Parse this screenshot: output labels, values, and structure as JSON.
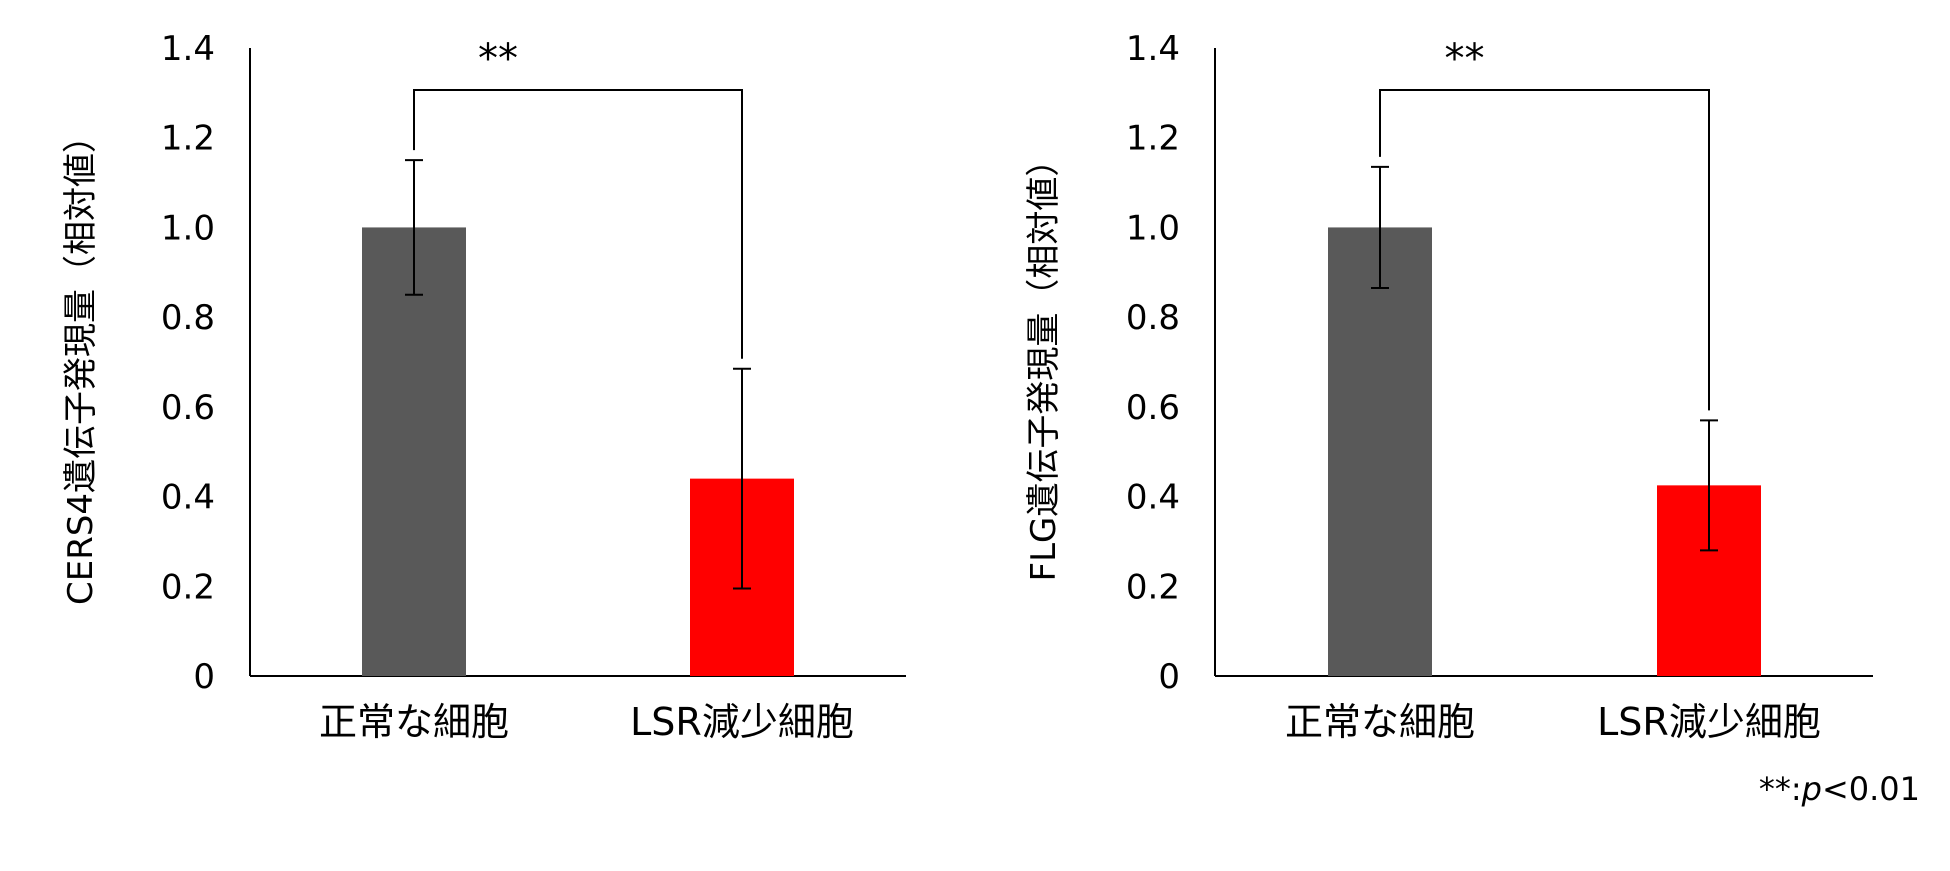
{
  "chart_data": [
    {
      "type": "bar",
      "categories": [
        "正常な細胞",
        "LSR減少細胞"
      ],
      "values": [
        1.0,
        0.44
      ],
      "error": [
        0.15,
        0.245
      ],
      "colors": [
        "#595959",
        "#ff0000"
      ],
      "ylabel": "CERS4遺伝子発現量（相対値）",
      "ylim": [
        0,
        1.4
      ],
      "yticks": [
        "0",
        "0.2",
        "0.4",
        "0.6",
        "0.8",
        "1.0",
        "1.2",
        "1.4"
      ],
      "significance": "**",
      "grid": false
    },
    {
      "type": "bar",
      "categories": [
        "正常な細胞",
        "LSR減少細胞"
      ],
      "values": [
        1.0,
        0.425
      ],
      "error": [
        0.135,
        0.145
      ],
      "colors": [
        "#595959",
        "#ff0000"
      ],
      "ylabel": "FLG遺伝子発現量（相対値）",
      "ylim": [
        0,
        1.4
      ],
      "yticks": [
        "0",
        "0.2",
        "0.4",
        "0.6",
        "0.8",
        "1.0",
        "1.2",
        "1.4"
      ],
      "significance": "**",
      "grid": false
    }
  ],
  "footnote": {
    "prefix": "**:",
    "p": "p",
    "suffix": "<0.01"
  }
}
